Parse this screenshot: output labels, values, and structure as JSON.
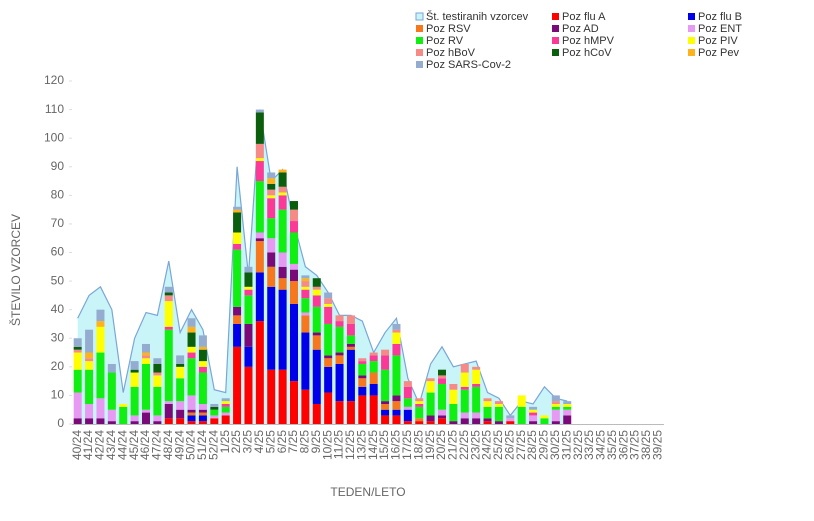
{
  "chart_data": {
    "type": "stacked_bar",
    "y_label": "ŠTEVILO VZORCEV",
    "x_label": "TEDEN/LETO",
    "categories": [
      "40/24",
      "41/24",
      "42/24",
      "43/24",
      "44/24",
      "45/24",
      "46/24",
      "47/24",
      "48/24",
      "49/24",
      "50/24",
      "51/24",
      "52/24",
      "1/25",
      "2/25",
      "3/25",
      "4/25",
      "5/25",
      "6/25",
      "7/25",
      "8/25",
      "9/25",
      "10/25",
      "11/25",
      "12/25",
      "13/25",
      "14/25",
      "15/25",
      "16/25",
      "17/25",
      "18/25",
      "19/25",
      "20/25",
      "21/25",
      "22/25",
      "23/25",
      "24/25",
      "25/25",
      "26/25",
      "27/25",
      "28/25",
      "29/25",
      "30/25",
      "31/25",
      "32/25",
      "33/25",
      "34/25",
      "35/25",
      "36/25",
      "37/25",
      "38/25",
      "39/25"
    ],
    "ylim": [
      0,
      120
    ],
    "yticks": [
      0,
      10,
      20,
      30,
      40,
      50,
      60,
      70,
      80,
      90,
      100,
      110,
      120
    ],
    "area_series": {
      "name": "Št. testiranih vzorcev",
      "color": "#7aa6d8",
      "fill": "#c9f5f9",
      "values": [
        37,
        45,
        48,
        40,
        11,
        30,
        39,
        38,
        57,
        32,
        40,
        33,
        12,
        11,
        90,
        52,
        110,
        85,
        89,
        70,
        55,
        52,
        46,
        38,
        38,
        36,
        25,
        32,
        37,
        16,
        7,
        21,
        27,
        20,
        21,
        22,
        11,
        9,
        3,
        8,
        7,
        13,
        9,
        8,
        null,
        null,
        null,
        null,
        null,
        null,
        null,
        null
      ]
    },
    "series": [
      {
        "name": "Poz flu A",
        "color": "#ff0000",
        "values": [
          0,
          0,
          0,
          0,
          0,
          0,
          0,
          0,
          2,
          2,
          1,
          1,
          2,
          3,
          27,
          20,
          36,
          19,
          19,
          15,
          12,
          7,
          11,
          8,
          8,
          10,
          10,
          3,
          3,
          1,
          1,
          1,
          2,
          0,
          0,
          0,
          1,
          0,
          1,
          0,
          0,
          0,
          0,
          0,
          0,
          0,
          0,
          0,
          0,
          0,
          0,
          0
        ]
      },
      {
        "name": "Poz flu B",
        "color": "#0000e8",
        "values": [
          0,
          0,
          0,
          0,
          0,
          0,
          0,
          0,
          0,
          0,
          2,
          2,
          0,
          0,
          8,
          7,
          17,
          29,
          28,
          27,
          20,
          19,
          9,
          13,
          18,
          3,
          4,
          2,
          2,
          4,
          0,
          0,
          0,
          0,
          0,
          0,
          0,
          0,
          0,
          0,
          0,
          0,
          0,
          0,
          0,
          0,
          0,
          0,
          0,
          0,
          0,
          0
        ]
      },
      {
        "name": "Poz RSV",
        "color": "#f7771e",
        "values": [
          0,
          0,
          0,
          0,
          0,
          0,
          0,
          0,
          0,
          0,
          1,
          1,
          0,
          0,
          3,
          0,
          11,
          7,
          4,
          8,
          6,
          5,
          3,
          3,
          1,
          3,
          4,
          2,
          3,
          0,
          1,
          0,
          0,
          0,
          0,
          0,
          0,
          0,
          0,
          0,
          0,
          0,
          0,
          0,
          0,
          0,
          0,
          0,
          0,
          0,
          0,
          0
        ]
      },
      {
        "name": "Poz AD",
        "color": "#7a0a78",
        "values": [
          2,
          2,
          2,
          1,
          0,
          1,
          4,
          1,
          5,
          3,
          1,
          1,
          0,
          0,
          3,
          8,
          1,
          5,
          4,
          4,
          0,
          1,
          1,
          1,
          1,
          1,
          0,
          1,
          2,
          0,
          0,
          2,
          1,
          1,
          2,
          2,
          1,
          1,
          0,
          0,
          1,
          0,
          1,
          3,
          0,
          0,
          0,
          0,
          0,
          0,
          0,
          0
        ]
      },
      {
        "name": "Poz ENT",
        "color": "#e79af2",
        "values": [
          9,
          5,
          7,
          4,
          0,
          2,
          1,
          2,
          1,
          3,
          5,
          2,
          1,
          1,
          0,
          0,
          2,
          5,
          5,
          2,
          1,
          0,
          0,
          0,
          0,
          0,
          0,
          0,
          0,
          1,
          0,
          0,
          2,
          0,
          2,
          2,
          0,
          0,
          1,
          0,
          2,
          0,
          4,
          2,
          0,
          0,
          0,
          0,
          0,
          0,
          0,
          0
        ]
      },
      {
        "name": "Poz RV",
        "color": "#11ee11",
        "values": [
          8,
          12,
          16,
          13,
          6,
          10,
          16,
          10,
          25,
          8,
          13,
          11,
          2,
          2,
          20,
          10,
          18,
          7,
          15,
          11,
          5,
          9,
          11,
          9,
          3,
          4,
          4,
          11,
          14,
          3,
          4,
          8,
          9,
          6,
          8,
          9,
          4,
          5,
          0,
          6,
          0,
          2,
          1,
          1,
          0,
          0,
          0,
          0,
          0,
          0,
          0,
          0
        ]
      },
      {
        "name": "Poz hMPV",
        "color": "#fb3a98",
        "values": [
          0,
          0,
          0,
          0,
          0,
          0,
          0,
          0,
          1,
          0,
          2,
          2,
          0,
          1,
          2,
          2,
          7,
          7,
          5,
          4,
          3,
          4,
          6,
          2,
          4,
          1,
          2,
          5,
          4,
          4,
          1,
          0,
          2,
          0,
          1,
          1,
          0,
          0,
          0,
          0,
          1,
          0,
          0,
          0,
          0,
          0,
          0,
          0,
          0,
          0,
          0,
          0
        ]
      },
      {
        "name": "Poz PIV",
        "color": "#ffff00",
        "values": [
          6,
          3,
          9,
          0,
          1,
          5,
          2,
          4,
          9,
          4,
          2,
          2,
          0,
          1,
          4,
          1,
          1,
          1,
          1,
          0,
          1,
          2,
          1,
          0,
          0,
          0,
          0,
          0,
          4,
          0,
          1,
          4,
          0,
          5,
          5,
          5,
          2,
          1,
          0,
          4,
          1,
          1,
          1,
          1,
          0,
          0,
          0,
          0,
          0,
          0,
          0,
          0
        ]
      },
      {
        "name": "Poz hBoV",
        "color": "#f58a86",
        "values": [
          1,
          1,
          0,
          0,
          0,
          0,
          1,
          1,
          2,
          0,
          0,
          0,
          0,
          0,
          0,
          0,
          5,
          2,
          2,
          4,
          2,
          1,
          2,
          2,
          3,
          1,
          1,
          2,
          1,
          2,
          1,
          1,
          1,
          2,
          3,
          1,
          1,
          1,
          0,
          0,
          0,
          0,
          1,
          0,
          0,
          0,
          0,
          0,
          0,
          0,
          0,
          0
        ]
      },
      {
        "name": "Poz hCoV",
        "color": "#0b5e0b",
        "values": [
          1,
          0,
          0,
          0,
          0,
          1,
          0,
          3,
          1,
          1,
          5,
          4,
          1,
          0,
          7,
          5,
          11,
          2,
          5,
          3,
          0,
          3,
          0,
          0,
          0,
          0,
          0,
          0,
          0,
          0,
          0,
          0,
          2,
          0,
          0,
          0,
          0,
          0,
          0,
          0,
          0,
          0,
          0,
          0,
          0,
          0,
          0,
          0,
          0,
          0,
          0,
          0
        ]
      },
      {
        "name": "Poz Pev",
        "color": "#ffb21a",
        "values": [
          0,
          2,
          2,
          0,
          0,
          0,
          1,
          0,
          0,
          0,
          2,
          1,
          0,
          0,
          1,
          0,
          0,
          2,
          1,
          0,
          1,
          0,
          0,
          0,
          0,
          0,
          0,
          0,
          0,
          0,
          0,
          0,
          0,
          0,
          0,
          0,
          0,
          0,
          0,
          0,
          0,
          0,
          0,
          0,
          0,
          0,
          0,
          0,
          0,
          0,
          0,
          0
        ]
      },
      {
        "name": "Poz SARS-Cov-2",
        "color": "#93acd0",
        "values": [
          3,
          8,
          4,
          3,
          0,
          3,
          3,
          2,
          2,
          3,
          3,
          4,
          1,
          1,
          1,
          2,
          1,
          2,
          0,
          0,
          1,
          0,
          2,
          0,
          0,
          0,
          0,
          0,
          2,
          0,
          0,
          0,
          0,
          0,
          0,
          0,
          0,
          0,
          1,
          0,
          1,
          0,
          2,
          1,
          0,
          0,
          0,
          0,
          0,
          0,
          0,
          0
        ]
      }
    ]
  }
}
